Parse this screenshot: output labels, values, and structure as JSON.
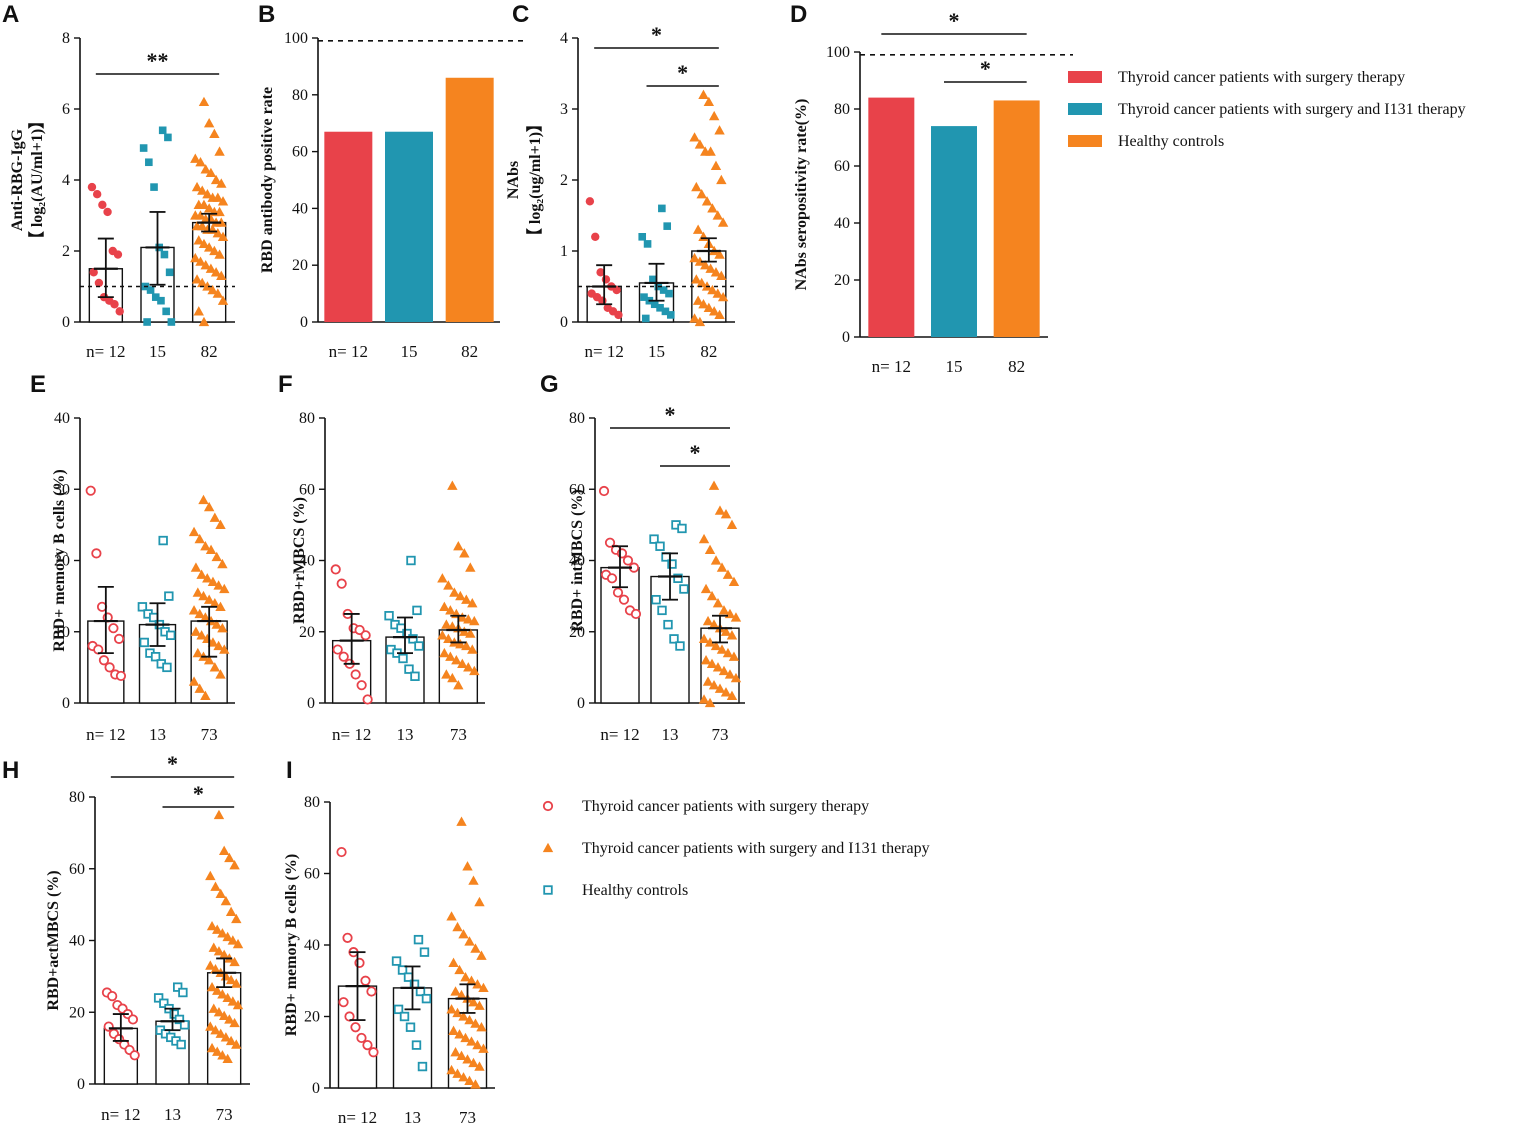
{
  "colors": {
    "red": "#e8424a",
    "teal": "#2196b0",
    "orange": "#f5841f",
    "axis": "#111111"
  },
  "legend_top": [
    {
      "label": "Thyroid cancer patients with surgery therapy",
      "color": "#e8424a"
    },
    {
      "label": "Thyroid cancer patients with surgery and  I131 therapy",
      "color": "#2196b0"
    },
    {
      "label": "Healthy controls",
      "color": "#f5841f"
    }
  ],
  "legend_bottom": [
    {
      "label": "Thyroid cancer patients with surgery therapy",
      "color": "#e8424a",
      "marker": "circle"
    },
    {
      "label": "Thyroid cancer patients with surgery and  I131 therapy",
      "color": "#f5841f",
      "marker": "triangle"
    },
    {
      "label": "Healthy controls",
      "color": "#2196b0",
      "marker": "square"
    }
  ],
  "chart_data": [
    {
      "panel": "A",
      "type": "scatter",
      "ylabel_line1": "Anti-RBG-IgG",
      "ylabel_line2": "【 log₂(AU/ml+1)】",
      "ylim": [
        0,
        8
      ],
      "yticks": [
        0,
        2,
        4,
        6,
        8
      ],
      "categories": [
        "n= 12",
        "15",
        "82"
      ],
      "means": [
        1.5,
        2.1,
        2.8
      ],
      "err_low": [
        0.7,
        1.05,
        2.55
      ],
      "err_high": [
        2.35,
        3.1,
        3.05
      ],
      "threshold": 1.0,
      "significance": [
        {
          "groups": [
            0,
            2
          ],
          "label": "**"
        }
      ],
      "markers": [
        "circle-filled",
        "square-filled",
        "triangle-filled"
      ],
      "points": [
        [
          3.8,
          3.6,
          3.3,
          3.1,
          2.0,
          1.9,
          1.4,
          1.1,
          0.7,
          0.6,
          0.5,
          0.3
        ],
        [
          5.4,
          5.2,
          4.9,
          4.5,
          3.8,
          2.1,
          1.9,
          1.4,
          1.0,
          0.9,
          0.7,
          0.6,
          0.3,
          0.0,
          0.0
        ],
        [
          6.2,
          5.6,
          5.3,
          4.8,
          4.6,
          4.5,
          4.3,
          4.2,
          4.0,
          3.9,
          3.8,
          3.7,
          3.6,
          3.5,
          3.5,
          3.4,
          3.3,
          3.3,
          3.2,
          3.1,
          3.1,
          3.0,
          3.0,
          2.9,
          2.9,
          2.8,
          2.8,
          2.7,
          2.7,
          2.6,
          2.6,
          2.5,
          2.4,
          2.3,
          2.2,
          2.1,
          2.0,
          1.9,
          1.8,
          1.7,
          1.6,
          1.5,
          1.4,
          1.3,
          1.2,
          1.1,
          1.0,
          0.9,
          0.8,
          0.6,
          0.3,
          0.0
        ]
      ]
    },
    {
      "panel": "B",
      "type": "bar",
      "ylabel": "RBD antibody positive rate",
      "ylim": [
        0,
        100
      ],
      "yticks": [
        0,
        20,
        40,
        60,
        80,
        100
      ],
      "categories": [
        "n= 12",
        "15",
        "82"
      ],
      "values": [
        67,
        67,
        86
      ],
      "reference_line": 99,
      "significance": []
    },
    {
      "panel": "C",
      "type": "scatter",
      "ylabel_line1": "NAbs",
      "ylabel_line2": "【 log₂(ug/ml+1)】",
      "ylim": [
        0,
        4
      ],
      "yticks": [
        0,
        1,
        2,
        3,
        4
      ],
      "categories": [
        "n= 12",
        "15",
        "82"
      ],
      "means": [
        0.5,
        0.55,
        1.0
      ],
      "err_low": [
        0.25,
        0.3,
        0.85
      ],
      "err_high": [
        0.8,
        0.82,
        1.18
      ],
      "threshold": 0.5,
      "significance": [
        {
          "groups": [
            0,
            2
          ],
          "label": "*"
        },
        {
          "groups": [
            1,
            2
          ],
          "label": "*"
        }
      ],
      "markers": [
        "circle-filled",
        "square-filled",
        "triangle-filled"
      ],
      "points": [
        [
          1.7,
          1.2,
          0.7,
          0.6,
          0.5,
          0.45,
          0.4,
          0.35,
          0.3,
          0.2,
          0.15,
          0.1
        ],
        [
          1.6,
          1.35,
          1.2,
          1.1,
          0.6,
          0.5,
          0.45,
          0.4,
          0.35,
          0.3,
          0.25,
          0.2,
          0.15,
          0.1,
          0.05
        ],
        [
          3.2,
          3.1,
          2.9,
          2.7,
          2.6,
          2.5,
          2.4,
          2.4,
          2.2,
          2.0,
          1.9,
          1.8,
          1.7,
          1.6,
          1.5,
          1.4,
          1.3,
          1.2,
          1.1,
          1.0,
          0.95,
          0.9,
          0.85,
          0.8,
          0.75,
          0.7,
          0.65,
          0.6,
          0.55,
          0.5,
          0.45,
          0.4,
          0.35,
          0.3,
          0.25,
          0.2,
          0.15,
          0.1,
          0.05,
          0.0
        ]
      ]
    },
    {
      "panel": "D",
      "type": "bar",
      "ylabel": "NAbs seropositivity rate(%)",
      "ylim": [
        0,
        100
      ],
      "yticks": [
        0,
        20,
        40,
        60,
        80,
        100
      ],
      "categories": [
        "n= 12",
        "15",
        "82"
      ],
      "values": [
        84,
        74,
        83
      ],
      "reference_line": 99,
      "significance": [
        {
          "groups": [
            0,
            2
          ],
          "label": "*"
        },
        {
          "groups": [
            1,
            2
          ],
          "label": "*"
        }
      ]
    },
    {
      "panel": "E",
      "type": "scatter",
      "ylabel": "RBD+ memory B cells (%)",
      "ylim": [
        0,
        40
      ],
      "yticks": [
        0,
        10,
        20,
        30,
        40
      ],
      "categories": [
        "n= 12",
        "13",
        "73"
      ],
      "means": [
        11.5,
        11.0,
        11.5
      ],
      "err_low": [
        7.0,
        8.0,
        6.5
      ],
      "err_high": [
        16.3,
        14.0,
        13.5
      ],
      "significance": [],
      "markers": [
        "circle-open",
        "square-open",
        "triangle-filled"
      ],
      "points": [
        [
          29.8,
          21.0,
          13.5,
          12.0,
          10.5,
          9.0,
          8.0,
          7.5,
          6.0,
          5.0,
          4.0,
          3.8
        ],
        [
          22.8,
          15.0,
          13.5,
          12.5,
          12.0,
          11.0,
          10.0,
          9.5,
          8.5,
          7.0,
          6.5,
          5.5,
          5.0
        ],
        [
          28.5,
          27.5,
          26.0,
          25.0,
          24.0,
          23.0,
          22.0,
          21.5,
          20.5,
          19.5,
          19.0,
          18.0,
          17.5,
          17.0,
          16.5,
          16.0,
          15.5,
          15.0,
          14.5,
          14.0,
          13.5,
          13.0,
          12.5,
          12.0,
          11.5,
          11.0,
          10.5,
          10.0,
          9.5,
          9.0,
          8.5,
          8.0,
          7.5,
          7.0,
          6.5,
          6.0,
          5.0,
          4.0,
          3.0,
          2.0,
          1.0
        ]
      ]
    },
    {
      "panel": "F",
      "type": "scatter",
      "ylabel": "RBD+rMBCS (%)",
      "ylim": [
        0,
        80
      ],
      "yticks": [
        0,
        20,
        40,
        60,
        80
      ],
      "categories": [
        "n= 12",
        "13",
        "73"
      ],
      "means": [
        17.5,
        18.5,
        20.5
      ],
      "err_low": [
        11.0,
        14.0,
        17.0
      ],
      "err_high": [
        25.0,
        24.0,
        24.5
      ],
      "significance": [],
      "markers": [
        "circle-open",
        "square-open",
        "triangle-filled"
      ],
      "points": [
        [
          37.5,
          33.5,
          25.0,
          21.0,
          20.5,
          19.0,
          15.0,
          13.0,
          11.0,
          8.0,
          5.0,
          1.0
        ],
        [
          40.0,
          26.0,
          24.5,
          22.0,
          21.0,
          19.5,
          18.0,
          16.0,
          15.0,
          14.0,
          12.5,
          9.5,
          7.5
        ],
        [
          61.0,
          44.0,
          42.0,
          38.0,
          35.0,
          33.0,
          31.0,
          30.0,
          29.0,
          28.0,
          27.0,
          26.0,
          25.0,
          24.0,
          23.5,
          23.0,
          22.0,
          21.5,
          21.0,
          20.0,
          19.5,
          19.0,
          18.0,
          17.0,
          16.5,
          16.0,
          15.0,
          14.0,
          13.0,
          12.0,
          11.0,
          10.0,
          9.0,
          8.0,
          7.0,
          5.0
        ]
      ]
    },
    {
      "panel": "G",
      "type": "scatter",
      "ylabel": "RBD+ intMBCS (%)",
      "ylim": [
        0,
        80
      ],
      "yticks": [
        0,
        20,
        40,
        60,
        80
      ],
      "categories": [
        "n= 12",
        "13",
        "73"
      ],
      "means": [
        38.0,
        35.5,
        21.0
      ],
      "err_low": [
        32.5,
        29.0,
        17.0
      ],
      "err_high": [
        44.0,
        42.0,
        24.5
      ],
      "significance": [
        {
          "groups": [
            0,
            2
          ],
          "label": "*"
        },
        {
          "groups": [
            1,
            2
          ],
          "label": "*"
        }
      ],
      "markers": [
        "circle-open",
        "square-open",
        "triangle-filled"
      ],
      "points": [
        [
          59.5,
          45.0,
          43.0,
          42.0,
          40.0,
          38.0,
          36.0,
          35.0,
          31.0,
          29.0,
          26.0,
          25.0
        ],
        [
          50.0,
          49.0,
          46.0,
          44.0,
          41.0,
          39.0,
          35.0,
          32.0,
          29.0,
          26.0,
          22.0,
          18.0,
          16.0
        ],
        [
          61.0,
          54.0,
          53.0,
          50.0,
          46.0,
          43.0,
          40.0,
          38.0,
          36.0,
          34.0,
          32.0,
          30.0,
          28.0,
          26.0,
          25.0,
          24.0,
          23.0,
          22.0,
          21.0,
          20.0,
          19.0,
          18.0,
          17.0,
          16.0,
          15.0,
          14.0,
          13.0,
          12.0,
          11.0,
          10.0,
          9.0,
          8.0,
          7.0,
          6.0,
          5.0,
          4.0,
          3.0,
          2.0,
          1.0,
          0.0
        ]
      ]
    },
    {
      "panel": "H",
      "type": "scatter",
      "ylabel": "RBD+actMBCS (%)",
      "ylim": [
        0,
        80
      ],
      "yticks": [
        0,
        20,
        40,
        60,
        80
      ],
      "categories": [
        "n= 12",
        "13",
        "73"
      ],
      "means": [
        15.5,
        17.5,
        31.0
      ],
      "err_low": [
        12.0,
        15.0,
        27.0
      ],
      "err_high": [
        19.5,
        21.0,
        35.0
      ],
      "significance": [
        {
          "groups": [
            0,
            2
          ],
          "label": "*"
        },
        {
          "groups": [
            1,
            2
          ],
          "label": "*"
        }
      ],
      "markers": [
        "circle-open",
        "square-open",
        "triangle-filled"
      ],
      "points": [
        [
          25.5,
          24.5,
          22.0,
          21.0,
          19.5,
          18.0,
          16.0,
          14.0,
          12.5,
          11.0,
          9.5,
          8.0
        ],
        [
          27.0,
          25.5,
          24.0,
          22.5,
          21.0,
          19.5,
          18.0,
          16.5,
          15.0,
          14.0,
          13.0,
          12.0,
          11.0
        ],
        [
          75.0,
          65.0,
          63.0,
          61.0,
          58.0,
          55.0,
          53.0,
          51.0,
          48.0,
          46.0,
          44.0,
          43.0,
          42.0,
          41.0,
          40.0,
          39.0,
          38.0,
          37.0,
          36.0,
          35.0,
          34.0,
          33.0,
          32.0,
          31.0,
          30.0,
          29.0,
          28.0,
          27.0,
          26.0,
          25.0,
          24.0,
          23.0,
          22.0,
          21.0,
          20.0,
          19.0,
          18.0,
          17.0,
          16.0,
          15.0,
          14.0,
          13.0,
          12.0,
          11.0,
          10.0,
          9.0,
          8.0,
          7.0
        ]
      ]
    },
    {
      "panel": "I",
      "type": "scatter",
      "ylabel": "RBD+ memory B cells (%)",
      "ylim": [
        0,
        80
      ],
      "yticks": [
        0,
        20,
        40,
        60,
        80
      ],
      "categories": [
        "n= 12",
        "13",
        "73"
      ],
      "means": [
        28.5,
        28.0,
        25.0
      ],
      "err_low": [
        19.0,
        22.0,
        21.0
      ],
      "err_high": [
        38.0,
        34.0,
        29.0
      ],
      "significance": [],
      "markers": [
        "circle-open",
        "square-open",
        "triangle-filled"
      ],
      "points": [
        [
          66.0,
          42.0,
          38.0,
          35.0,
          30.0,
          27.0,
          24.0,
          20.0,
          17.0,
          14.0,
          12.0,
          10.0
        ],
        [
          41.5,
          38.0,
          35.5,
          33.0,
          31.0,
          29.0,
          27.0,
          25.0,
          22.0,
          20.0,
          17.0,
          12.0,
          6.0
        ],
        [
          74.5,
          62.0,
          58.0,
          52.0,
          48.0,
          45.0,
          43.0,
          41.0,
          39.0,
          37.0,
          35.0,
          33.0,
          31.0,
          30.0,
          29.0,
          28.0,
          27.0,
          26.0,
          25.0,
          24.0,
          23.0,
          22.0,
          21.0,
          20.0,
          19.0,
          18.0,
          17.0,
          16.0,
          15.0,
          14.0,
          13.0,
          12.0,
          11.0,
          10.0,
          9.0,
          8.0,
          7.0,
          6.0,
          5.0,
          4.0,
          3.0,
          2.0,
          1.0
        ]
      ]
    }
  ]
}
